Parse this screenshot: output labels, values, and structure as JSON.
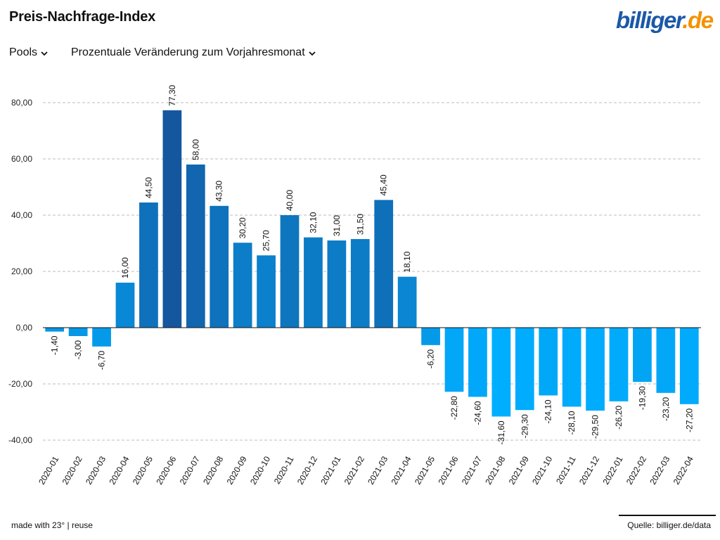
{
  "header": {
    "title": "Preis-Nachfrage-Index",
    "logo_main": "billiger",
    "logo_tld": ".de"
  },
  "controls": {
    "category_label": "Pools",
    "metric_label": "Prozentuale Veränderung zum Vorjahresmonat"
  },
  "footer": {
    "made_with": "made with 23° | reuse",
    "source": "Quelle: billiger.de/data"
  },
  "colors": {
    "title": "#111111",
    "logo_blue": "#1b58a8",
    "logo_orange": "#f39200",
    "grid": "#bdbdbd",
    "zero_line": "#111111",
    "bar_low": "#00aeff",
    "bar_high": "#15579e"
  },
  "chart_data": {
    "type": "bar",
    "title": "Preis-Nachfrage-Index",
    "xlabel": "",
    "ylabel": "",
    "ylim": [
      -40,
      80
    ],
    "yticks": [
      80,
      60,
      40,
      20,
      0,
      -20,
      -40
    ],
    "ytick_labels": [
      "80,00",
      "60,00",
      "40,00",
      "20,00",
      "0,00",
      "-20,00",
      "-40,00"
    ],
    "grid": true,
    "categories": [
      "2020-01",
      "2020-02",
      "2020-03",
      "2020-04",
      "2020-05",
      "2020-06",
      "2020-07",
      "2020-08",
      "2020-09",
      "2020-10",
      "2020-11",
      "2020-12",
      "2021-01",
      "2021-02",
      "2021-03",
      "2021-04",
      "2021-05",
      "2021-06",
      "2021-07",
      "2021-08",
      "2021-09",
      "2021-10",
      "2021-11",
      "2021-12",
      "2022-01",
      "2022-02",
      "2022-03",
      "2022-04"
    ],
    "values": [
      -1.4,
      -3.0,
      -6.7,
      16.0,
      44.5,
      77.3,
      58.0,
      43.3,
      30.2,
      25.7,
      40.0,
      32.1,
      31.0,
      31.5,
      45.4,
      18.1,
      -6.2,
      -22.8,
      -24.6,
      -31.6,
      -29.3,
      -24.1,
      -28.1,
      -29.5,
      -26.2,
      -19.3,
      -23.2,
      -27.2
    ],
    "value_labels": [
      "-1,40",
      "-3,00",
      "-6,70",
      "16,00",
      "44,50",
      "77,30",
      "58,00",
      "43,30",
      "30,20",
      "25,70",
      "40,00",
      "32,10",
      "31,00",
      "31,50",
      "45,40",
      "18,10",
      "-6,20",
      "-22,80",
      "-24,60",
      "-31,60",
      "-29,30",
      "-24,10",
      "-28,10",
      "-29,50",
      "-26,20",
      "-19,30",
      "-23,20",
      "-27,20"
    ]
  }
}
